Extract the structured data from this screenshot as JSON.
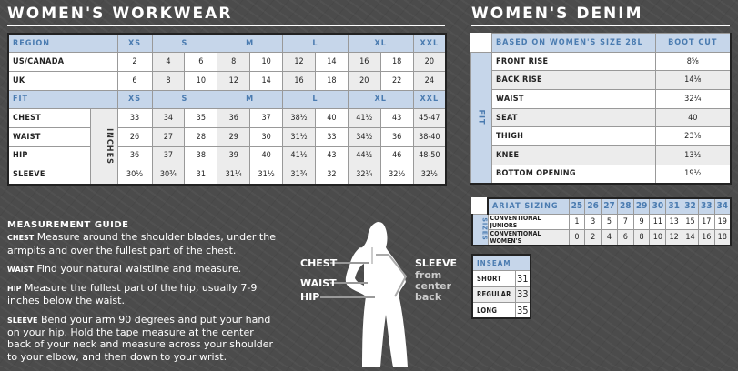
{
  "workwear": {
    "title": "WOMEN'S WORKWEAR",
    "region_header": "REGION",
    "fit_header": "FIT",
    "inches_label": "INCHES",
    "sizes": [
      "XS",
      "S",
      "M",
      "L",
      "XL",
      "XXL"
    ],
    "region_rows": [
      {
        "label": "US/CANADA",
        "values": [
          "2",
          "4",
          "6",
          "8",
          "10",
          "12",
          "14",
          "16",
          "18",
          "20"
        ]
      },
      {
        "label": "UK",
        "values": [
          "6",
          "8",
          "10",
          "12",
          "14",
          "16",
          "18",
          "20",
          "22",
          "24"
        ]
      }
    ],
    "fit_rows": [
      {
        "label": "CHEST",
        "values": [
          "33",
          "34",
          "35",
          "36",
          "37",
          "38½",
          "40",
          "41½",
          "43",
          "45-47"
        ]
      },
      {
        "label": "WAIST",
        "values": [
          "26",
          "27",
          "28",
          "29",
          "30",
          "31½",
          "33",
          "34½",
          "36",
          "38-40"
        ]
      },
      {
        "label": "HIP",
        "values": [
          "36",
          "37",
          "38",
          "39",
          "40",
          "41½",
          "43",
          "44½",
          "46",
          "48-50"
        ]
      },
      {
        "label": "SLEEVE",
        "values": [
          "30½",
          "30¾",
          "31",
          "31¼",
          "31½",
          "31¾",
          "32",
          "32¼",
          "32½",
          "32½"
        ]
      }
    ]
  },
  "denim": {
    "title": "WOMEN'S DENIM",
    "header_label": "BASED ON WOMEN'S SIZE 28L",
    "header_value": "BOOT CUT",
    "fit_label": "FIT",
    "rows": [
      {
        "label": "FRONT RISE",
        "value": "8⅝"
      },
      {
        "label": "BACK RISE",
        "value": "14⅛"
      },
      {
        "label": "WAIST",
        "value": "32¼"
      },
      {
        "label": "SEAT",
        "value": "40"
      },
      {
        "label": "THIGH",
        "value": "23⅛"
      },
      {
        "label": "KNEE",
        "value": "13½"
      },
      {
        "label": "BOTTOM OPENING",
        "value": "19½"
      }
    ]
  },
  "ariat": {
    "header": "ARIAT SIZING",
    "sizes_label": "SIZES",
    "sizes": [
      "25",
      "26",
      "27",
      "28",
      "29",
      "30",
      "31",
      "32",
      "33",
      "34"
    ],
    "rows": [
      {
        "label": "CONVENTIONAL JUNIORS",
        "values": [
          "1",
          "3",
          "5",
          "7",
          "9",
          "11",
          "13",
          "15",
          "17",
          "19"
        ]
      },
      {
        "label": "CONVENTIONAL WOMEN'S",
        "values": [
          "0",
          "2",
          "4",
          "6",
          "8",
          "10",
          "12",
          "14",
          "16",
          "18"
        ]
      }
    ]
  },
  "inseam": {
    "header": "INSEAM",
    "rows": [
      {
        "label": "SHORT",
        "value": "31"
      },
      {
        "label": "REGULAR",
        "value": "33"
      },
      {
        "label": "LONG",
        "value": "35"
      }
    ]
  },
  "guide": {
    "title": "MEASUREMENT GUIDE",
    "items": [
      {
        "term": "CHEST",
        "text": "Measure around the shoulder blades, under the armpits and over the fullest part of the chest."
      },
      {
        "term": "WAIST",
        "text": "Find your natural waistline and measure."
      },
      {
        "term": "HIP",
        "text": "Measure the fullest part of the hip, usually 7-9 inches below the waist."
      },
      {
        "term": "SLEEVE",
        "text": "Bend your arm 90 degrees and put your hand on your hip. Hold the tape measure at the center back of your neck and measure across your shoulder to your elbow, and then down to your wrist."
      }
    ]
  },
  "figure": {
    "chest": "CHEST",
    "waist": "WAIST",
    "hip": "HIP",
    "sleeve": "SLEEVE",
    "sleeve_note": "from center back"
  },
  "colors": {
    "header_bg": "#c6d6ea",
    "header_text": "#4a7bb0",
    "background": "#4b4b4b"
  }
}
